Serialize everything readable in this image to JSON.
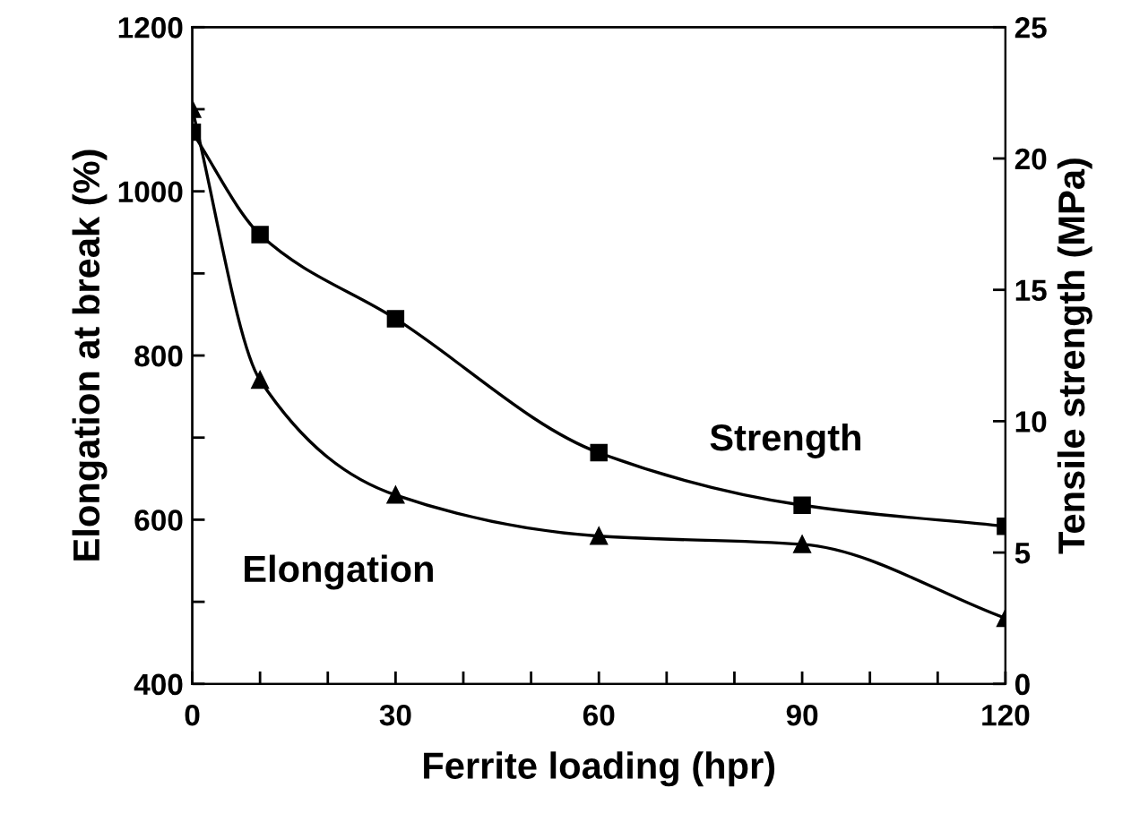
{
  "chart_data": {
    "type": "line",
    "xlabel": "Ferrite loading (hpr)",
    "ylabel": "Elongation at break (%)",
    "y2label": "Tensile strength (MPa)",
    "x": [
      0,
      10,
      30,
      60,
      90,
      120
    ],
    "series": [
      {
        "name": "Elongation",
        "color": "#000000",
        "marker": "triangle",
        "values": [
          1100,
          770,
          630,
          580,
          570,
          480
        ]
      },
      {
        "name": "Strength",
        "color": "#000000",
        "marker": "square",
        "axis": "y2",
        "values": [
          21.0,
          17.1,
          13.9,
          8.8,
          6.8,
          6.0
        ]
      }
    ],
    "xlim": [
      0,
      120
    ],
    "xticks": [
      0,
      {
        "value": 10,
        "label": null
      },
      {
        "value": 20,
        "label": null
      },
      30,
      {
        "value": 40,
        "label": null
      },
      {
        "value": 50,
        "label": null
      },
      60,
      {
        "value": 70,
        "label": null
      },
      {
        "value": 80,
        "label": null
      },
      90,
      {
        "value": 100,
        "label": null
      },
      {
        "value": 110,
        "label": null
      },
      120
    ],
    "ylim": [
      400,
      1200
    ],
    "yticks": [
      400,
      {
        "value": 500,
        "label": null
      },
      600,
      {
        "value": 700,
        "label": null
      },
      800,
      {
        "value": 900,
        "label": null
      },
      1000,
      {
        "value": 1100,
        "label": null
      },
      1200
    ],
    "y2lim": [
      0,
      25
    ],
    "y2ticks": [
      0,
      5,
      10,
      15,
      20,
      25
    ],
    "grid": false,
    "legend": false,
    "line_style": "solid"
  }
}
